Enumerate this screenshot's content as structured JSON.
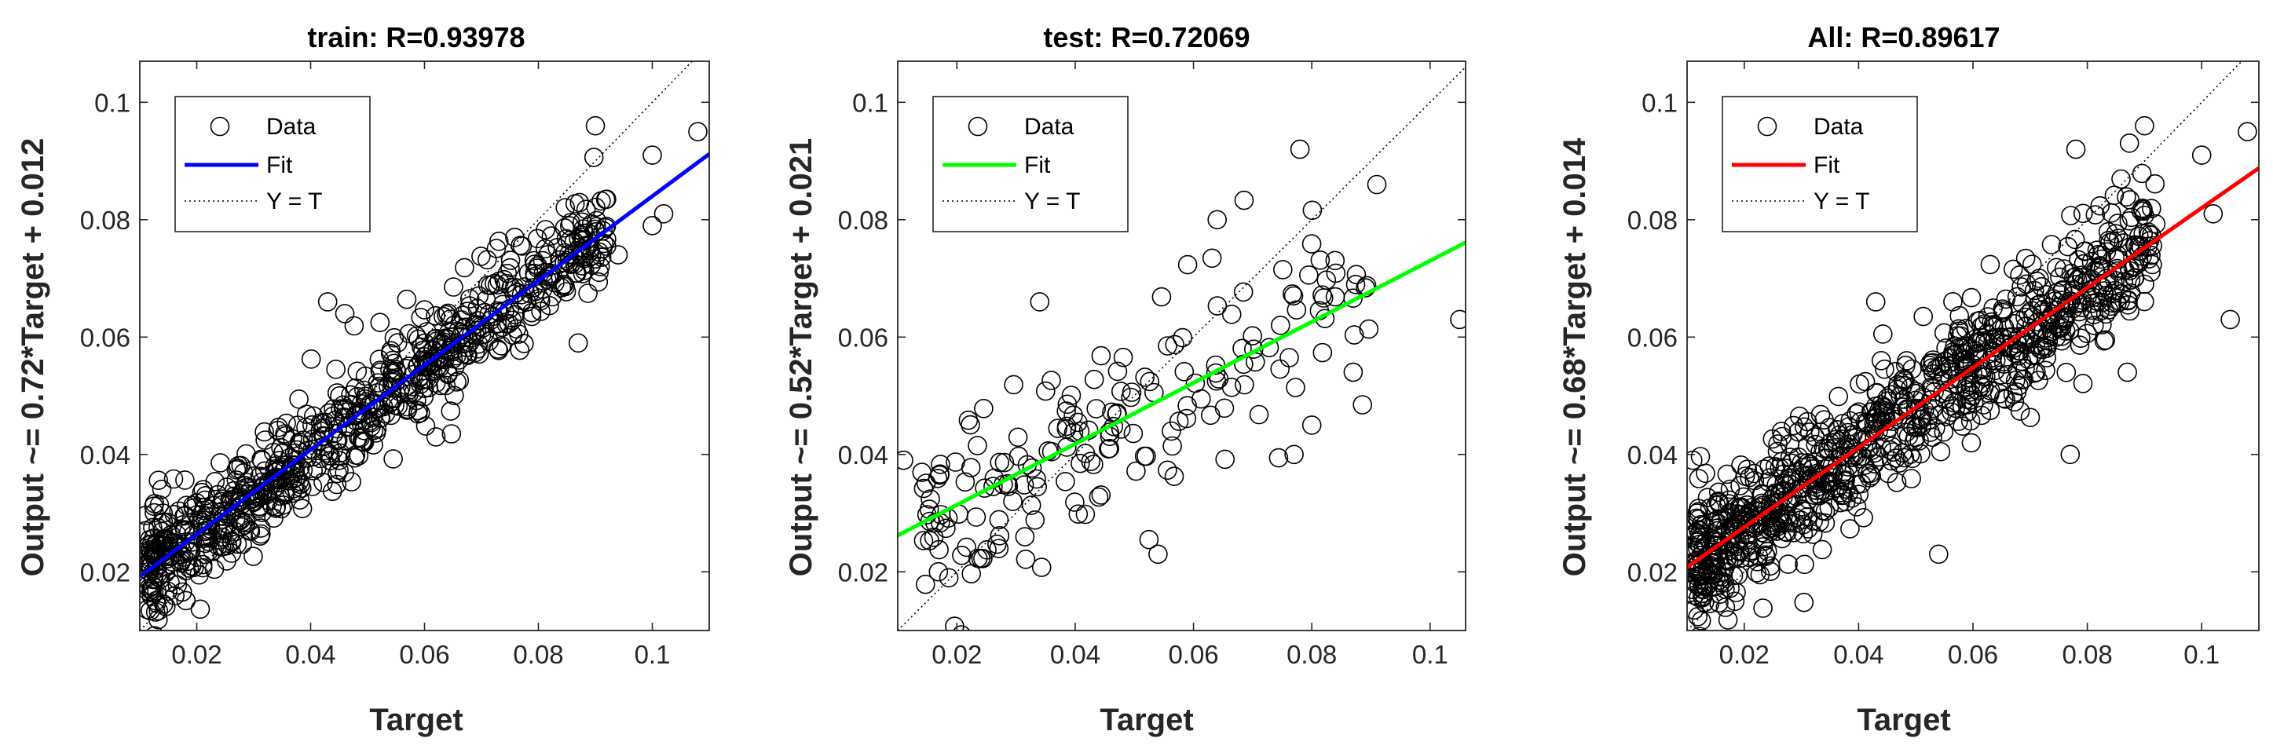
{
  "chart_data": [
    {
      "type": "scatter",
      "title": "train: R=0.93978",
      "xlabel": "Target",
      "ylabel": "Output ~= 0.72*Target + 0.012",
      "xlim": [
        0.01,
        0.11
      ],
      "ylim": [
        0.01,
        0.107
      ],
      "xticks": [
        0.02,
        0.04,
        0.06,
        0.08,
        0.1
      ],
      "yticks": [
        0.02,
        0.04,
        0.06,
        0.08,
        0.1
      ],
      "fit_color": "#0000ff",
      "fit": {
        "slope": 0.72,
        "intercept": 0.012
      },
      "legend": {
        "position": "top-left",
        "entries": [
          "Data",
          "Fit",
          "Y = T"
        ]
      },
      "n_points": 780,
      "seed": 11,
      "noise": 0.0045,
      "x_range": [
        0.011,
        0.092
      ],
      "series": [
        {
          "name": "Data",
          "points": [
            [
              0.09,
              0.096
            ],
            [
              0.1,
              0.091
            ],
            [
              0.108,
              0.095
            ],
            [
              0.102,
              0.081
            ],
            [
              0.1,
              0.079
            ],
            [
              0.043,
              0.066
            ],
            [
              0.046,
              0.064
            ],
            [
              0.062,
              0.043
            ],
            [
              0.011,
              0.027
            ],
            [
              0.012,
              0.017
            ],
            [
              0.087,
              0.059
            ],
            [
              0.094,
              0.074
            ]
          ]
        }
      ]
    },
    {
      "type": "scatter",
      "title": "test: R=0.72069",
      "xlabel": "Target",
      "ylabel": "Output ~= 0.52*Target + 0.021",
      "xlim": [
        0.01,
        0.106
      ],
      "ylim": [
        0.01,
        0.107
      ],
      "xticks": [
        0.02,
        0.04,
        0.06,
        0.08,
        0.1
      ],
      "yticks": [
        0.02,
        0.04,
        0.06,
        0.08,
        0.1
      ],
      "fit_color": "#00ff00",
      "fit": {
        "slope": 0.52,
        "intercept": 0.021
      },
      "legend": {
        "position": "top-left",
        "entries": [
          "Data",
          "Fit",
          "Y = T"
        ]
      },
      "n_points": 185,
      "seed": 23,
      "noise": 0.0085,
      "x_range": [
        0.014,
        0.09
      ],
      "series": [
        {
          "name": "Data",
          "points": [
            [
              0.011,
              0.039
            ],
            [
              0.078,
              0.092
            ],
            [
              0.105,
              0.063
            ],
            [
              0.091,
              0.086
            ],
            [
              0.034,
              0.066
            ],
            [
              0.064,
              0.08
            ],
            [
              0.054,
              0.023
            ],
            [
              0.077,
              0.04
            ],
            [
              0.08,
              0.045
            ],
            [
              0.087,
              0.054
            ]
          ]
        }
      ]
    },
    {
      "type": "scatter",
      "title": "All: R=0.89617",
      "xlabel": "Target",
      "ylabel": "Output ~= 0.68*Target + 0.014",
      "xlim": [
        0.01,
        0.11
      ],
      "ylim": [
        0.01,
        0.107
      ],
      "xticks": [
        0.02,
        0.04,
        0.06,
        0.08,
        0.1
      ],
      "yticks": [
        0.02,
        0.04,
        0.06,
        0.08,
        0.1
      ],
      "fit_color": "#ff0000",
      "fit": {
        "slope": 0.68,
        "intercept": 0.014
      },
      "legend": {
        "position": "top-left",
        "entries": [
          "Data",
          "Fit",
          "Y = T"
        ]
      },
      "n_points": 940,
      "seed": 37,
      "noise": 0.0055,
      "x_range": [
        0.011,
        0.092
      ],
      "series": [
        {
          "name": "Data",
          "points": [
            [
              0.09,
              0.096
            ],
            [
              0.1,
              0.091
            ],
            [
              0.108,
              0.095
            ],
            [
              0.102,
              0.081
            ],
            [
              0.078,
              0.092
            ],
            [
              0.105,
              0.063
            ],
            [
              0.011,
              0.039
            ],
            [
              0.054,
              0.023
            ],
            [
              0.077,
              0.04
            ],
            [
              0.043,
              0.066
            ],
            [
              0.011,
              0.017
            ],
            [
              0.087,
              0.054
            ]
          ]
        }
      ]
    }
  ]
}
